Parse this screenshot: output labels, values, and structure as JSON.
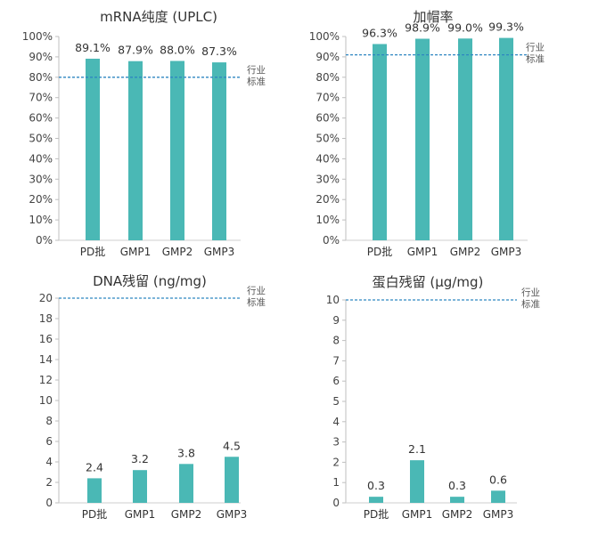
{
  "bar_color": "#4ab8b5",
  "reference_line_color": "#2e86c1",
  "chart_data": [
    {
      "type": "bar",
      "title": "mRNA纯度 (UPLC)",
      "categories": [
        "PD批",
        "GMP1",
        "GMP2",
        "GMP3"
      ],
      "values": [
        89.1,
        87.9,
        88.0,
        87.3
      ],
      "data_labels": [
        "89.1%",
        "87.9%",
        "88.0%",
        "87.3%"
      ],
      "yticks": [
        "0%",
        "10%",
        "20%",
        "30%",
        "40%",
        "50%",
        "60%",
        "70%",
        "80%",
        "90%",
        "100%"
      ],
      "ylim": [
        0,
        100
      ],
      "reference_line": {
        "value": 80,
        "label": [
          "行业",
          "标准"
        ]
      },
      "grid": false
    },
    {
      "type": "bar",
      "title": "加帽率",
      "categories": [
        "PD批",
        "GMP1",
        "GMP2",
        "GMP3"
      ],
      "values": [
        96.3,
        98.9,
        99.0,
        99.3
      ],
      "data_labels": [
        "96.3%",
        "98.9%",
        "99.0%",
        "99.3%"
      ],
      "yticks": [
        "0%",
        "10%",
        "20%",
        "30%",
        "40%",
        "50%",
        "60%",
        "70%",
        "80%",
        "90%",
        "100%"
      ],
      "ylim": [
        0,
        100
      ],
      "reference_line": {
        "value": 91,
        "label": [
          "行业",
          "标准"
        ]
      },
      "grid": false
    },
    {
      "type": "bar",
      "title": "DNA残留 (ng/mg)",
      "categories": [
        "PD批",
        "GMP1",
        "GMP2",
        "GMP3"
      ],
      "values": [
        2.4,
        3.2,
        3.8,
        4.5
      ],
      "data_labels": [
        "2.4",
        "3.2",
        "3.8",
        "4.5"
      ],
      "yticks": [
        "0",
        "2",
        "4",
        "6",
        "8",
        "10",
        "12",
        "14",
        "16",
        "18",
        "20"
      ],
      "ylim": [
        0,
        20
      ],
      "reference_line": {
        "value": 20,
        "label": [
          "行业",
          "标准"
        ]
      },
      "grid": false
    },
    {
      "type": "bar",
      "title": "蛋白残留 (μg/mg)",
      "categories": [
        "PD批",
        "GMP1",
        "GMP2",
        "GMP3"
      ],
      "values": [
        0.3,
        2.1,
        0.3,
        0.6
      ],
      "data_labels": [
        "0.3",
        "2.1",
        "0.3",
        "0.6"
      ],
      "yticks": [
        "0",
        "1",
        "2",
        "3",
        "4",
        "5",
        "6",
        "7",
        "8",
        "9",
        "10"
      ],
      "ylim": [
        0,
        10
      ],
      "reference_line": {
        "value": 10,
        "label": [
          "行业",
          "标准"
        ]
      },
      "grid": false
    }
  ]
}
